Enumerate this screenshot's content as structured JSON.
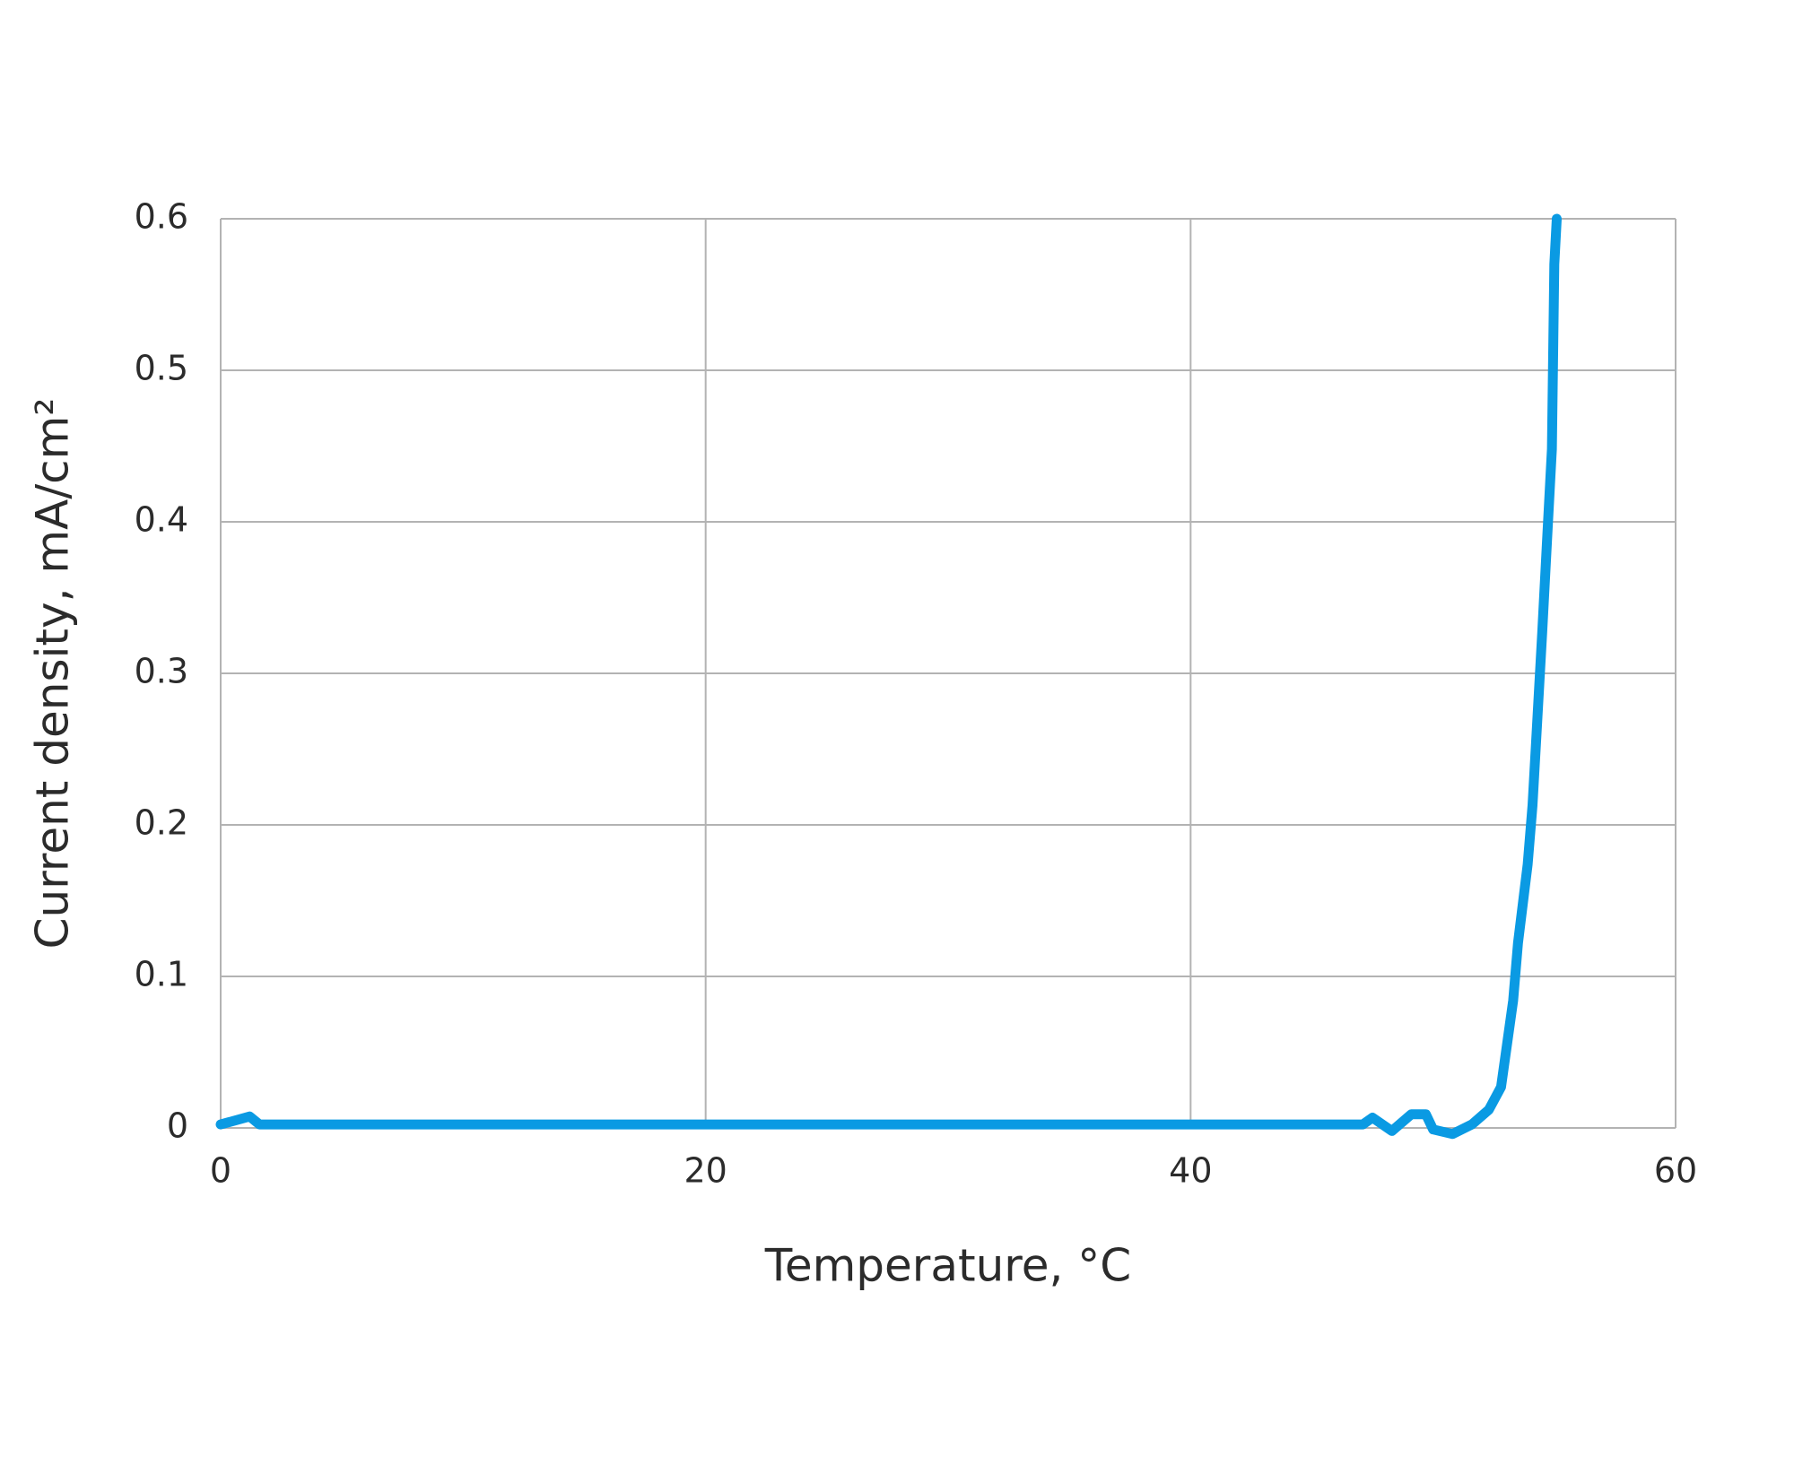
{
  "chart_data": {
    "type": "line",
    "x_label": "Temperature, °C",
    "y_label": "Current density, mA/cm²",
    "xlim": [
      0,
      60
    ],
    "xticks": [
      0,
      20,
      40,
      60
    ],
    "ylim": [
      0,
      0.6
    ],
    "yticks": [
      0,
      0.1,
      0.2,
      0.3,
      0.4,
      0.5,
      0.6
    ],
    "grid": true,
    "series": [
      {
        "color": "#0a9ae3",
        "x": [
          0,
          1.2,
          1.6,
          47.1,
          47.5,
          48.3,
          49.1,
          49.7,
          50.0,
          50.8,
          51.6,
          52.3,
          52.8,
          53.3,
          53.5,
          53.9,
          54.1,
          54.5,
          54.7,
          54.9,
          55.0,
          55.1
        ],
        "values": [
          0.0023,
          0.0076,
          0.0023,
          0.0023,
          0.0068,
          -0.002,
          0.009,
          0.009,
          -0.001,
          -0.004,
          0.0023,
          0.012,
          0.027,
          0.084,
          0.122,
          0.174,
          0.213,
          0.327,
          0.388,
          0.448,
          0.57,
          0.6
        ]
      }
    ]
  }
}
